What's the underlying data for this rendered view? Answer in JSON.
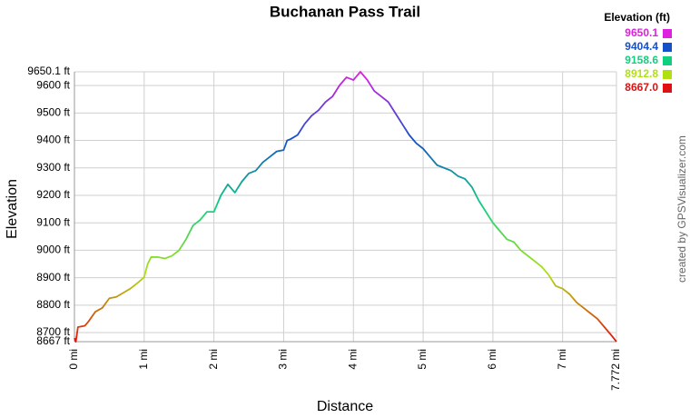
{
  "chart_data": {
    "type": "line",
    "title": "Buchanan Pass Trail",
    "xlabel": "Distance",
    "ylabel": "Elevation",
    "credit": "created by GPSVisualizer.com",
    "legend": {
      "title": "Elevation (ft)",
      "position": "top-right",
      "entries": [
        {
          "value": 9650.1,
          "label": "9650.1",
          "color": "#e020e0"
        },
        {
          "value": 9404.4,
          "label": "9404.4",
          "color": "#1450c8"
        },
        {
          "value": 9158.6,
          "label": "9158.6",
          "color": "#10d080"
        },
        {
          "value": 8912.8,
          "label": "8912.8",
          "color": "#b0e010"
        },
        {
          "value": 8667.0,
          "label": "8667.0",
          "color": "#e01010"
        }
      ]
    },
    "grid": true,
    "xlim": [
      0,
      7.772
    ],
    "xticks": [
      {
        "value": 0,
        "label": "0 mi"
      },
      {
        "value": 1,
        "label": "1 mi"
      },
      {
        "value": 2,
        "label": "2 mi"
      },
      {
        "value": 3,
        "label": "3 mi"
      },
      {
        "value": 4,
        "label": "4 mi"
      },
      {
        "value": 5,
        "label": "5 mi"
      },
      {
        "value": 6,
        "label": "6 mi"
      },
      {
        "value": 7,
        "label": "7 mi"
      },
      {
        "value": 7.772,
        "label": "7.772 mi"
      }
    ],
    "ylim": [
      8667,
      9650.1
    ],
    "yticks": [
      {
        "value": 8667,
        "label": "8667 ft"
      },
      {
        "value": 8700,
        "label": "8700 ft"
      },
      {
        "value": 8800,
        "label": "8800 ft"
      },
      {
        "value": 8900,
        "label": "8900 ft"
      },
      {
        "value": 9000,
        "label": "9000 ft"
      },
      {
        "value": 9100,
        "label": "9100 ft"
      },
      {
        "value": 9200,
        "label": "9200 ft"
      },
      {
        "value": 9300,
        "label": "9300 ft"
      },
      {
        "value": 9400,
        "label": "9400 ft"
      },
      {
        "value": 9500,
        "label": "9500 ft"
      },
      {
        "value": 9600,
        "label": "9600 ft"
      },
      {
        "value": 9650.1,
        "label": "9650.1 ft"
      }
    ],
    "x": [
      0,
      0.02,
      0.05,
      0.15,
      0.2,
      0.3,
      0.4,
      0.5,
      0.6,
      0.7,
      0.8,
      0.9,
      1.0,
      1.05,
      1.1,
      1.2,
      1.3,
      1.4,
      1.5,
      1.6,
      1.7,
      1.8,
      1.9,
      2.0,
      2.1,
      2.2,
      2.3,
      2.4,
      2.5,
      2.6,
      2.7,
      2.8,
      2.9,
      3.0,
      3.05,
      3.1,
      3.2,
      3.3,
      3.4,
      3.5,
      3.6,
      3.7,
      3.8,
      3.9,
      4.0,
      4.1,
      4.2,
      4.3,
      4.4,
      4.5,
      4.6,
      4.7,
      4.8,
      4.9,
      5.0,
      5.1,
      5.2,
      5.3,
      5.4,
      5.5,
      5.6,
      5.7,
      5.8,
      5.9,
      6.0,
      6.1,
      6.2,
      6.3,
      6.4,
      6.5,
      6.6,
      6.7,
      6.8,
      6.9,
      7.0,
      7.1,
      7.2,
      7.3,
      7.4,
      7.5,
      7.6,
      7.7,
      7.772
    ],
    "values": [
      8680,
      8667,
      8720,
      8725,
      8740,
      8776,
      8790,
      8825,
      8830,
      8845,
      8860,
      8880,
      8902,
      8950,
      8975,
      8975,
      8970,
      8980,
      9000,
      9040,
      9090,
      9110,
      9140,
      9140,
      9200,
      9240,
      9210,
      9250,
      9280,
      9290,
      9320,
      9340,
      9360,
      9365,
      9400,
      9405,
      9420,
      9460,
      9490,
      9510,
      9540,
      9560,
      9600,
      9630,
      9620,
      9650.1,
      9620,
      9580,
      9560,
      9540,
      9500,
      9460,
      9420,
      9390,
      9370,
      9340,
      9310,
      9300,
      9290,
      9270,
      9260,
      9230,
      9180,
      9140,
      9100,
      9070,
      9040,
      9030,
      9000,
      8980,
      8960,
      8940,
      8910,
      8870,
      8860,
      8840,
      8810,
      8790,
      8770,
      8750,
      8720,
      8690,
      8667
    ]
  }
}
